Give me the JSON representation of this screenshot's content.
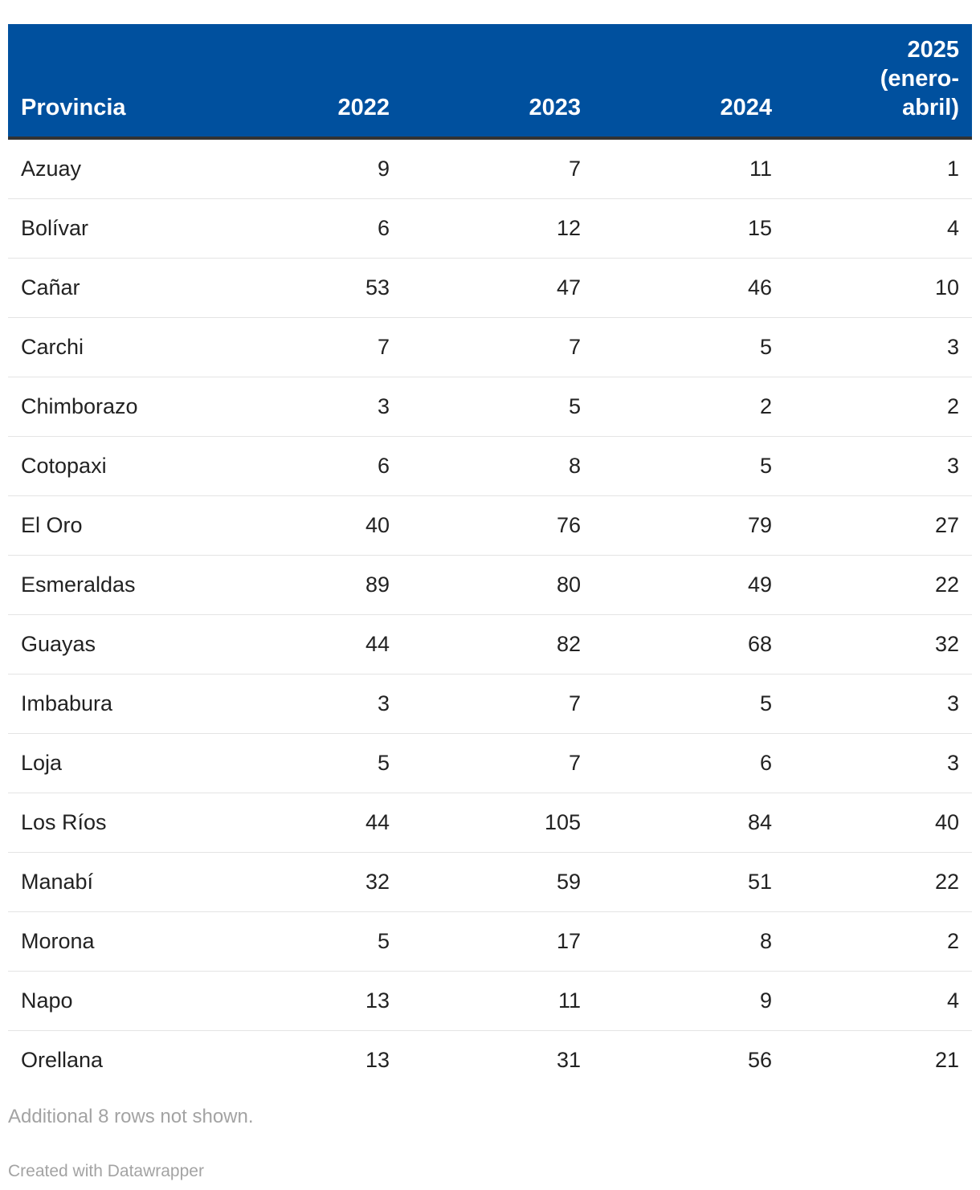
{
  "chart_data": {
    "type": "table",
    "columns": [
      "Provincia",
      "2022",
      "2023",
      "2024",
      "2025 (enero-abril)"
    ],
    "header_last_lines": [
      "2025",
      "(enero-",
      "abril)"
    ],
    "rows": [
      [
        "Azuay",
        "9",
        "7",
        "11",
        "1"
      ],
      [
        "Bolívar",
        "6",
        "12",
        "15",
        "4"
      ],
      [
        "Cañar",
        "53",
        "47",
        "46",
        "10"
      ],
      [
        "Carchi",
        "7",
        "7",
        "5",
        "3"
      ],
      [
        "Chimborazo",
        "3",
        "5",
        "2",
        "2"
      ],
      [
        "Cotopaxi",
        "6",
        "8",
        "5",
        "3"
      ],
      [
        "El Oro",
        "40",
        "76",
        "79",
        "27"
      ],
      [
        "Esmeraldas",
        "89",
        "80",
        "49",
        "22"
      ],
      [
        "Guayas",
        "44",
        "82",
        "68",
        "32"
      ],
      [
        "Imbabura",
        "3",
        "7",
        "5",
        "3"
      ],
      [
        "Loja",
        "5",
        "7",
        "6",
        "3"
      ],
      [
        "Los Ríos",
        "44",
        "105",
        "84",
        "40"
      ],
      [
        "Manabí",
        "32",
        "59",
        "51",
        "22"
      ],
      [
        "Morona",
        "5",
        "17",
        "8",
        "2"
      ],
      [
        "Napo",
        "13",
        "11",
        "9",
        "4"
      ],
      [
        "Orellana",
        "13",
        "31",
        "56",
        "21"
      ]
    ]
  },
  "footer": {
    "note": "Additional 8 rows not shown.",
    "credit": "Created with Datawrapper"
  },
  "colors": {
    "header_background": "#00509e",
    "header_text": "#ffffff",
    "header_rule": "#333333",
    "row_divider": "#e4e4e4",
    "footer_text": "#a3a3a3"
  }
}
